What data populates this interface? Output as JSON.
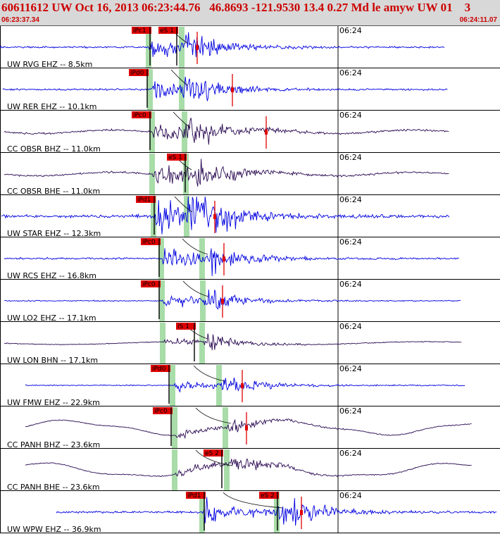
{
  "header": {
    "title": "60611612 UW Oct 16, 2013 06:23:44.76   46.8693 -121.9530 13.4 0.27 Md le amyw UW 01    3",
    "start_time": "06:23:37.34",
    "end_time": "06:24:11.07"
  },
  "colors": {
    "header_bg": "#d8d8d8",
    "header_text": "#cc0000",
    "trace_blue": "#0000e0",
    "trace_dark": "#2a0a52",
    "pick_red": "#e00000",
    "window_green": "#a8dca8"
  },
  "chart_data": {
    "type": "seismogram",
    "time_axis": {
      "tick_label": "06:24"
    },
    "traces": [
      {
        "label": "UW RVG EHZ -- 8.5km",
        "color": "blue",
        "picks": [
          {
            "label": "iPc1"
          },
          {
            "label": "eS 1"
          }
        ]
      },
      {
        "label": "UW RER EHZ -- 10.1km",
        "color": "blue",
        "picks": [
          {
            "label": "iPd0"
          }
        ]
      },
      {
        "label": "CC OBSR BHZ -- 11.0km",
        "color": "dark",
        "picks": [
          {
            "label": "iPc0"
          }
        ]
      },
      {
        "label": "CC OBSR BHE -- 11.0km",
        "color": "dark",
        "picks": [
          {
            "label": "eS 1"
          }
        ]
      },
      {
        "label": "UW STAR EHZ -- 12.3km",
        "color": "blue",
        "picks": [
          {
            "label": "iPd1"
          }
        ]
      },
      {
        "label": "UW RCS EHZ -- 16.8km",
        "color": "blue",
        "picks": [
          {
            "label": "iPc0"
          }
        ]
      },
      {
        "label": "UW LO2 EHZ -- 17.1km",
        "color": "blue",
        "picks": [
          {
            "label": "iPc0"
          }
        ]
      },
      {
        "label": "UW LON BHN -- 17.1km",
        "color": "dark",
        "picks": [
          {
            "label": "iS 1"
          }
        ]
      },
      {
        "label": "UW FMW EHZ -- 22.9km",
        "color": "blue",
        "picks": [
          {
            "label": "iPd0"
          }
        ]
      },
      {
        "label": "CC PANH BHZ -- 23.6km",
        "color": "dark",
        "picks": [
          {
            "label": "iPc0"
          }
        ]
      },
      {
        "label": "CC PANH BHE -- 23.6km",
        "color": "dark",
        "picks": [
          {
            "label": "eS 2"
          }
        ]
      },
      {
        "label": "UW WPW EHZ -- 36.9km",
        "color": "blue",
        "picks": [
          {
            "label": "iPd1"
          },
          {
            "label": "eS 2"
          }
        ]
      }
    ]
  }
}
